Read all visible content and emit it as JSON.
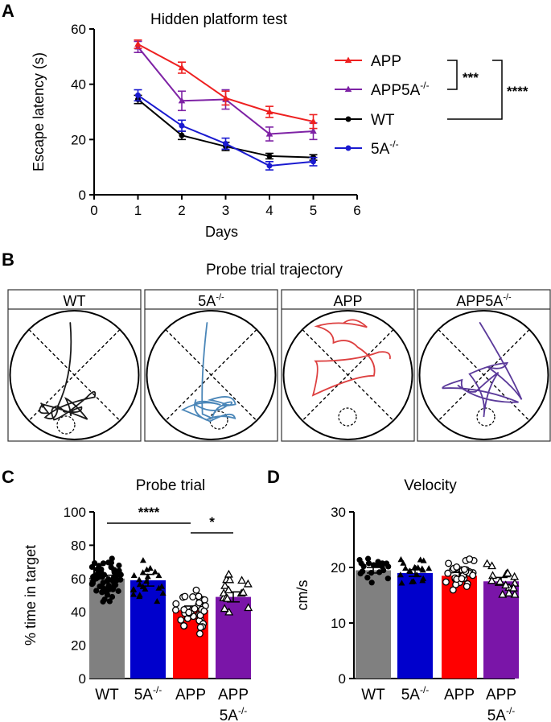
{
  "panels": {
    "A": {
      "letter": "A",
      "title": "Hidden platform test"
    },
    "B": {
      "letter": "B",
      "title": "Probe trial trajectory"
    },
    "C": {
      "letter": "C",
      "title": "Probe trial"
    },
    "D": {
      "letter": "D",
      "title": "Velocity"
    }
  },
  "colors": {
    "APP": "#ee2020",
    "APP5A": "#7e22a5",
    "WT": "#000000",
    "5A": "#1a1ad0",
    "bar_WT": "#808080",
    "bar_5A": "#0000cc",
    "bar_APP": "#ff0000",
    "bar_APP5A": "#7a15a8",
    "traj_WT": "#1a1a1a",
    "traj_5A": "#4a86b8",
    "traj_APP": "#dd4040",
    "traj_APP5A": "#5b3a9a"
  },
  "chart_data": [
    {
      "id": "A",
      "type": "line",
      "title": "Hidden platform test",
      "xlabel": "Days",
      "ylabel": "Escape latency (s)",
      "xlim": [
        0,
        6
      ],
      "ylim": [
        0,
        60
      ],
      "xticks": [
        0,
        1,
        2,
        3,
        4,
        5,
        6
      ],
      "yticks": [
        0,
        20,
        40,
        60
      ],
      "x": [
        1,
        2,
        3,
        4,
        5
      ],
      "series": [
        {
          "key": "APP",
          "name": "APP",
          "marker": "triangle",
          "values": [
            54.5,
            46,
            35,
            30,
            26.5
          ],
          "err": [
            1.5,
            2,
            2.5,
            2,
            2.5
          ]
        },
        {
          "key": "APP5A",
          "name": "APP5A",
          "sup": "-/-",
          "marker": "triangle",
          "values": [
            53.5,
            34,
            34.5,
            22,
            23
          ],
          "err": [
            2,
            3.5,
            3.5,
            2.5,
            3
          ]
        },
        {
          "key": "WT",
          "name": "WT",
          "marker": "circle",
          "values": [
            34.5,
            21.5,
            17.5,
            14,
            13.5
          ],
          "err": [
            1.5,
            1.5,
            1.5,
            1,
            1
          ]
        },
        {
          "key": "5A",
          "name": "5A",
          "sup": "-/-",
          "marker": "circle",
          "values": [
            36,
            25,
            18.5,
            10.5,
            12
          ],
          "err": [
            2,
            2,
            2,
            1.5,
            1.5
          ]
        }
      ],
      "significance": [
        "***",
        "****"
      ]
    },
    {
      "id": "C",
      "type": "bar",
      "title": "Probe trial",
      "ylabel": "% time in target",
      "ylim": [
        0,
        100
      ],
      "yticks": [
        0,
        20,
        40,
        60,
        80,
        100
      ],
      "categories": [
        "WT",
        "5A-/-",
        "APP",
        "APP 5A-/-"
      ],
      "category_labels": [
        {
          "main": "WT"
        },
        {
          "main": "5A",
          "sup": "-/-"
        },
        {
          "main": "APP"
        },
        {
          "main": "APP",
          "line2": "5A",
          "sup": "-/-"
        }
      ],
      "values": [
        60,
        59,
        41,
        49
      ],
      "sem": [
        2,
        3.5,
        2.5,
        3
      ],
      "significance": [
        "****",
        "*"
      ]
    },
    {
      "id": "D",
      "type": "bar",
      "title": "Velocity",
      "ylabel": "cm/s",
      "ylim": [
        0,
        30
      ],
      "yticks": [
        0,
        10,
        20,
        30
      ],
      "categories": [
        "WT",
        "5A-/-",
        "APP",
        "APP 5A-/-"
      ],
      "category_labels": [
        {
          "main": "WT"
        },
        {
          "main": "5A",
          "sup": "-/-"
        },
        {
          "main": "APP"
        },
        {
          "main": "APP",
          "line2": "5A",
          "sup": "-/-"
        }
      ],
      "values": [
        19.5,
        19,
        18.5,
        17.5
      ],
      "sem": [
        0.5,
        0.6,
        0.6,
        0.7
      ]
    }
  ],
  "trajectory_labels": [
    {
      "main": "WT"
    },
    {
      "main": "5A",
      "sup": "-/-"
    },
    {
      "main": "APP"
    },
    {
      "main": "APP5A",
      "sup": "-/-"
    }
  ]
}
